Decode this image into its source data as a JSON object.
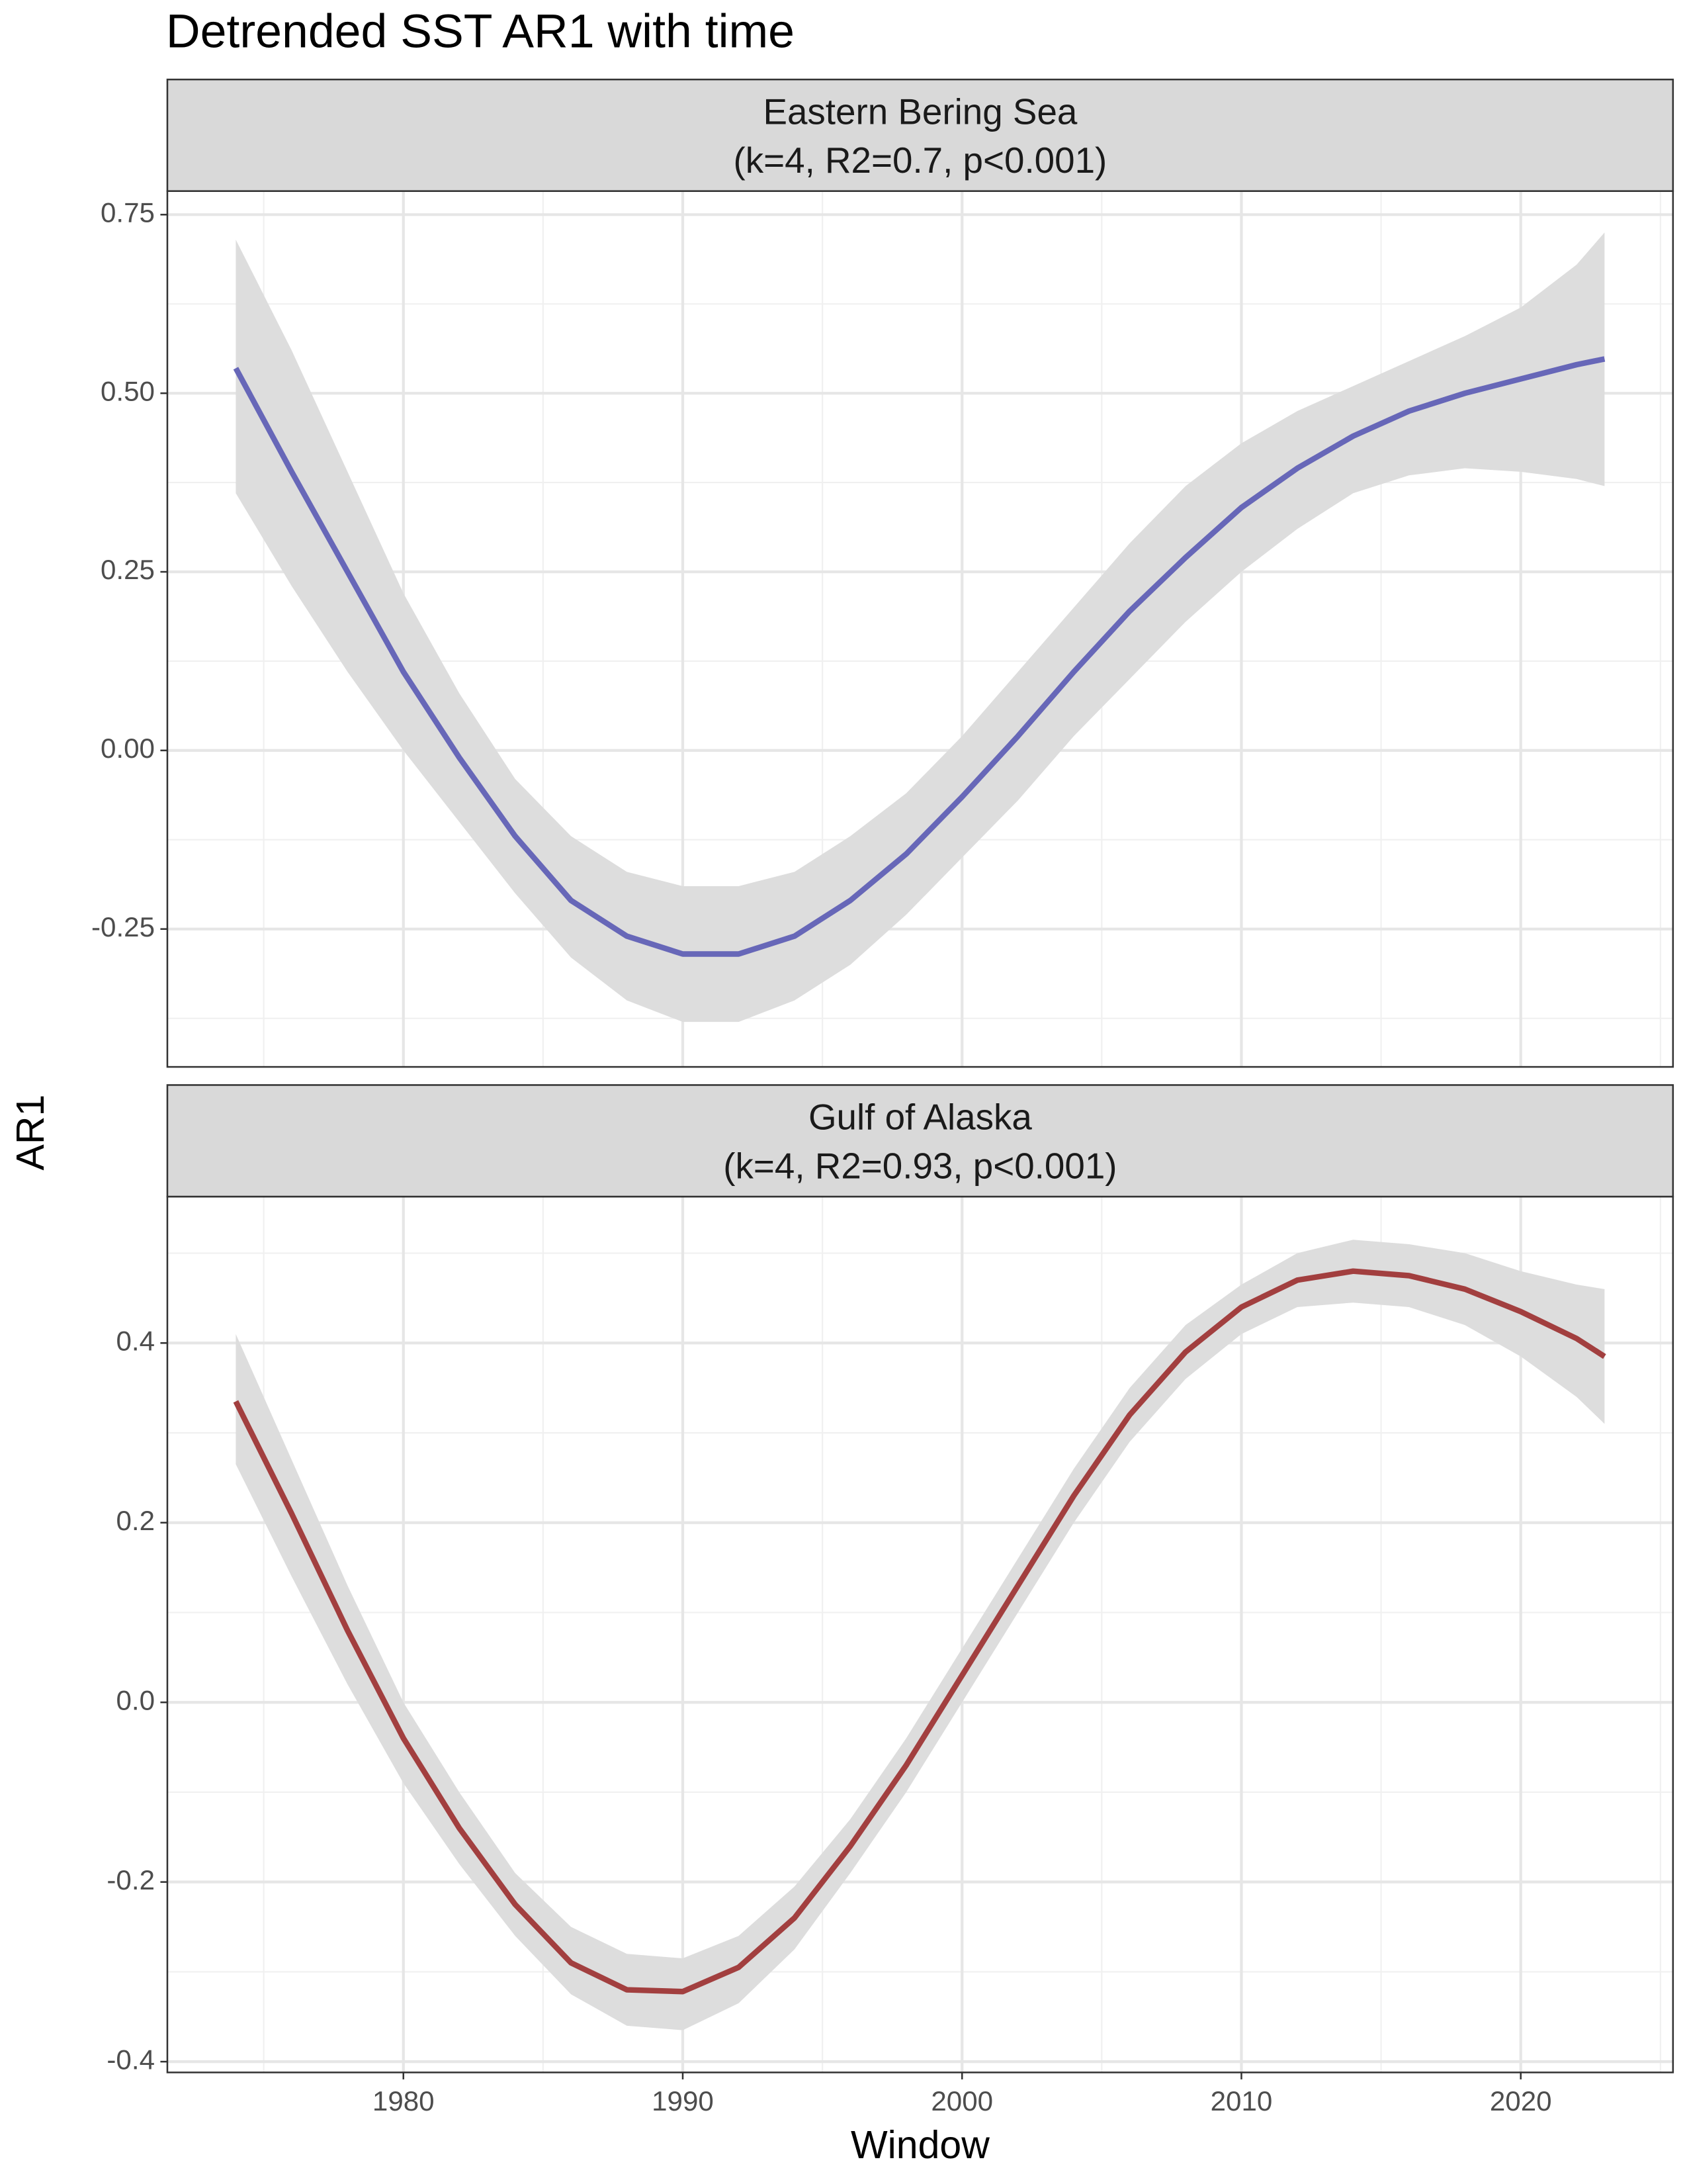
{
  "chart_data": {
    "type": "line",
    "title": "Detrended SST AR1 with time",
    "xlabel": "Window",
    "ylabel": "AR1",
    "x": [
      1974,
      1976,
      1978,
      1980,
      1982,
      1984,
      1986,
      1988,
      1990,
      1992,
      1994,
      1996,
      1998,
      2000,
      2002,
      2004,
      2006,
      2008,
      2010,
      2012,
      2014,
      2016,
      2018,
      2020,
      2022,
      2023
    ],
    "xlim": [
      1971.55,
      2025.45
    ],
    "xticks": [
      1980,
      1990,
      2000,
      2010,
      2020
    ],
    "grid": true,
    "panels": [
      {
        "title": [
          "Eastern Bering Sea",
          "(k=4, R2=0.7, p<0.001)"
        ],
        "ylim": [
          -0.443,
          0.783
        ],
        "yticks": [
          0.75,
          {
            "value": 0.5,
            "label": "0.50"
          },
          0.25,
          {
            "value": 0,
            "label": "0.00"
          },
          -0.25
        ],
        "series": [
          {
            "color": "#6767b8",
            "band_color": "#dddddd",
            "values": [
              0.535,
              0.39,
              0.25,
              0.11,
              -0.01,
              -0.12,
              -0.21,
              -0.26,
              -0.285,
              -0.285,
              -0.26,
              -0.21,
              -0.145,
              -0.065,
              0.02,
              0.11,
              0.195,
              0.27,
              0.34,
              0.395,
              0.44,
              0.475,
              0.5,
              0.52,
              0.54,
              0.548
            ],
            "upper": [
              0.715,
              0.56,
              0.39,
              0.22,
              0.08,
              -0.04,
              -0.12,
              -0.17,
              -0.19,
              -0.19,
              -0.17,
              -0.12,
              -0.06,
              0.02,
              0.11,
              0.2,
              0.29,
              0.37,
              0.43,
              0.475,
              0.51,
              0.545,
              0.58,
              0.62,
              0.68,
              0.725
            ],
            "lower": [
              0.36,
              0.23,
              0.11,
              0.0,
              -0.1,
              -0.2,
              -0.29,
              -0.35,
              -0.38,
              -0.38,
              -0.35,
              -0.3,
              -0.23,
              -0.15,
              -0.07,
              0.02,
              0.1,
              0.18,
              0.25,
              0.31,
              0.36,
              0.385,
              0.395,
              0.39,
              0.38,
              0.37
            ]
          }
        ]
      },
      {
        "title": [
          "Gulf of Alaska",
          "(k=4, R2=0.93, p<0.001)"
        ],
        "ylim": [
          -0.412,
          0.563
        ],
        "yticks": [
          0.4,
          0.2,
          {
            "value": 0,
            "label": "0.0"
          },
          -0.2,
          -0.4
        ],
        "series": [
          {
            "color": "#a23f3f",
            "band_color": "#dddddd",
            "values": [
              0.335,
              0.21,
              0.08,
              -0.04,
              -0.14,
              -0.225,
              -0.29,
              -0.32,
              -0.322,
              -0.295,
              -0.24,
              -0.16,
              -0.07,
              0.03,
              0.13,
              0.23,
              0.32,
              0.39,
              0.44,
              0.47,
              0.48,
              0.475,
              0.46,
              0.435,
              0.405,
              0.385
            ],
            "upper": [
              0.41,
              0.27,
              0.13,
              0.0,
              -0.1,
              -0.19,
              -0.25,
              -0.28,
              -0.285,
              -0.26,
              -0.205,
              -0.13,
              -0.04,
              0.06,
              0.16,
              0.26,
              0.35,
              0.42,
              0.465,
              0.5,
              0.515,
              0.51,
              0.5,
              0.48,
              0.465,
              0.46
            ],
            "lower": [
              0.265,
              0.14,
              0.02,
              -0.09,
              -0.18,
              -0.26,
              -0.325,
              -0.36,
              -0.365,
              -0.335,
              -0.275,
              -0.19,
              -0.1,
              0.0,
              0.1,
              0.2,
              0.29,
              0.36,
              0.41,
              0.44,
              0.445,
              0.44,
              0.42,
              0.385,
              0.34,
              0.31
            ]
          }
        ]
      }
    ]
  }
}
